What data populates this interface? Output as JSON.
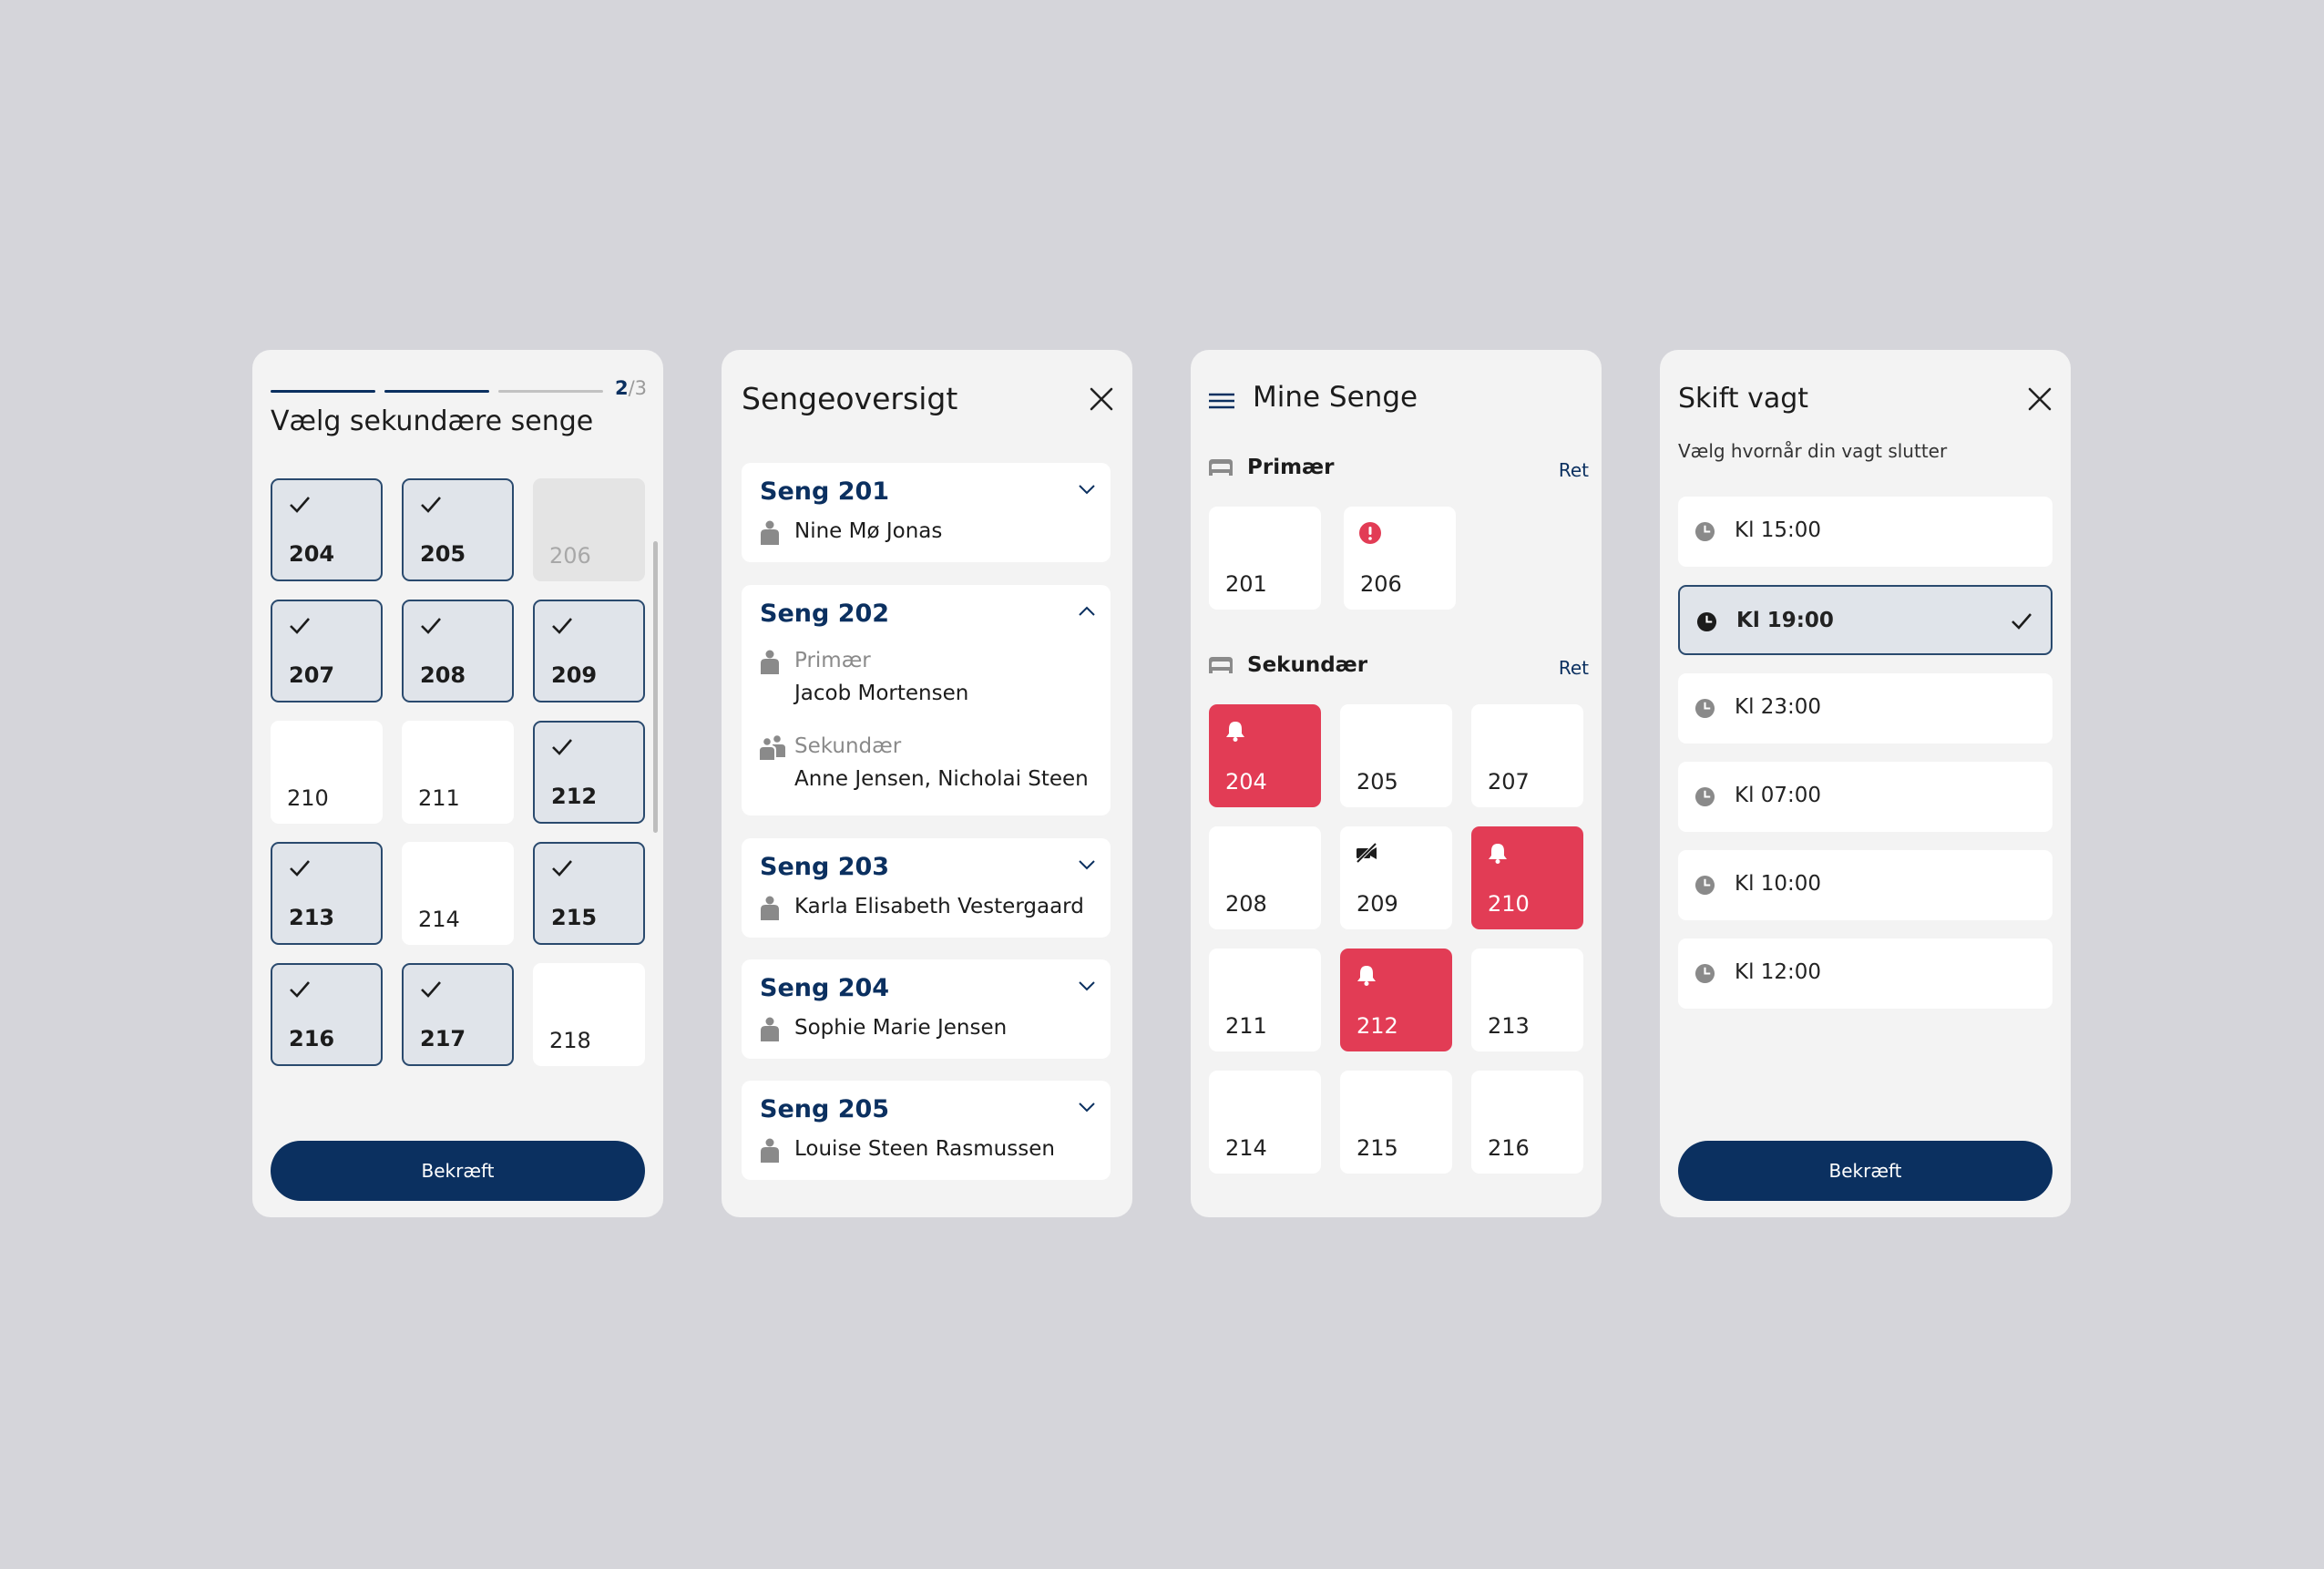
{
  "colors": {
    "navy": "#0b3060",
    "alert": "#e23c55",
    "selected_bg": "#e0e4ea",
    "background": "#d5d5da"
  },
  "panel1": {
    "step_current": "2",
    "step_total": "/3",
    "title": "Vælg sekundære senge",
    "beds": [
      {
        "num": "204",
        "state": "selected"
      },
      {
        "num": "205",
        "state": "selected"
      },
      {
        "num": "206",
        "state": "disabled"
      },
      {
        "num": "207",
        "state": "selected"
      },
      {
        "num": "208",
        "state": "selected"
      },
      {
        "num": "209",
        "state": "selected"
      },
      {
        "num": "210",
        "state": "default"
      },
      {
        "num": "211",
        "state": "default"
      },
      {
        "num": "212",
        "state": "selected"
      },
      {
        "num": "213",
        "state": "selected"
      },
      {
        "num": "214",
        "state": "default"
      },
      {
        "num": "215",
        "state": "selected"
      },
      {
        "num": "216",
        "state": "selected"
      },
      {
        "num": "217",
        "state": "selected"
      },
      {
        "num": "218",
        "state": "default"
      }
    ],
    "confirm": "Bekræft"
  },
  "panel2": {
    "title": "Sengeoversigt",
    "cards": [
      {
        "title": "Seng 201",
        "patient": "Nine Mø Jonas",
        "expanded": false
      },
      {
        "title": "Seng 202",
        "expanded": true,
        "primary_label": "Primær",
        "primary_name": "Jacob Mortensen",
        "secondary_label": "Sekundær",
        "secondary_names": "Anne Jensen, Nicholai Steen"
      },
      {
        "title": "Seng 203",
        "patient": "Karla Elisabeth Vestergaard",
        "expanded": false
      },
      {
        "title": "Seng 204",
        "patient": "Sophie Marie Jensen",
        "expanded": false
      },
      {
        "title": "Seng 205",
        "patient": "Louise Steen Rasmussen",
        "expanded": false
      }
    ]
  },
  "panel3": {
    "title": "Mine Senge",
    "primary_label": "Primær",
    "secondary_label": "Sekundær",
    "edit": "Ret",
    "primary_beds": [
      {
        "num": "201",
        "icon": "none"
      },
      {
        "num": "206",
        "icon": "error-icon"
      }
    ],
    "secondary_beds": [
      {
        "num": "204",
        "icon": "bell-icon",
        "alert": true
      },
      {
        "num": "205",
        "icon": "none",
        "alert": false
      },
      {
        "num": "207",
        "icon": "none",
        "alert": false
      },
      {
        "num": "208",
        "icon": "none",
        "alert": false
      },
      {
        "num": "209",
        "icon": "camera-off-icon",
        "alert": false
      },
      {
        "num": "210",
        "icon": "bell-icon",
        "alert": true
      },
      {
        "num": "211",
        "icon": "none",
        "alert": false
      },
      {
        "num": "212",
        "icon": "bell-icon",
        "alert": true
      },
      {
        "num": "213",
        "icon": "none",
        "alert": false
      },
      {
        "num": "214",
        "icon": "none",
        "alert": false
      },
      {
        "num": "215",
        "icon": "none",
        "alert": false
      },
      {
        "num": "216",
        "icon": "none",
        "alert": false
      }
    ]
  },
  "panel4": {
    "title": "Skift vagt",
    "subtitle": "Vælg hvornår din vagt slutter",
    "options": [
      {
        "label": "Kl 15:00",
        "selected": false
      },
      {
        "label": "Kl 19:00",
        "selected": true
      },
      {
        "label": "Kl 23:00",
        "selected": false
      },
      {
        "label": "Kl 07:00",
        "selected": false
      },
      {
        "label": "Kl 10:00",
        "selected": false
      },
      {
        "label": "Kl 12:00",
        "selected": false
      }
    ],
    "confirm": "Bekræft"
  }
}
